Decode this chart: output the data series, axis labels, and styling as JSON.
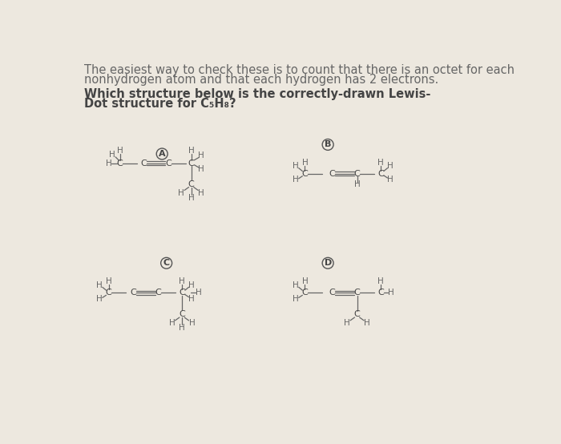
{
  "bg_color": "#ede8df",
  "text_color": "#666666",
  "dark_text": "#444444",
  "intro_line1": "The easiest way to check these is to count that there is an octet for each",
  "intro_line2": "nonhydrogen atom and that each hydrogen has 2 electrons.",
  "question_line1": "Which structure below is the correctly-drawn Lewis-",
  "question_line2": "Dot structure for C₅H₈?",
  "fig_width": 7.0,
  "fig_height": 5.54,
  "dpi": 100
}
